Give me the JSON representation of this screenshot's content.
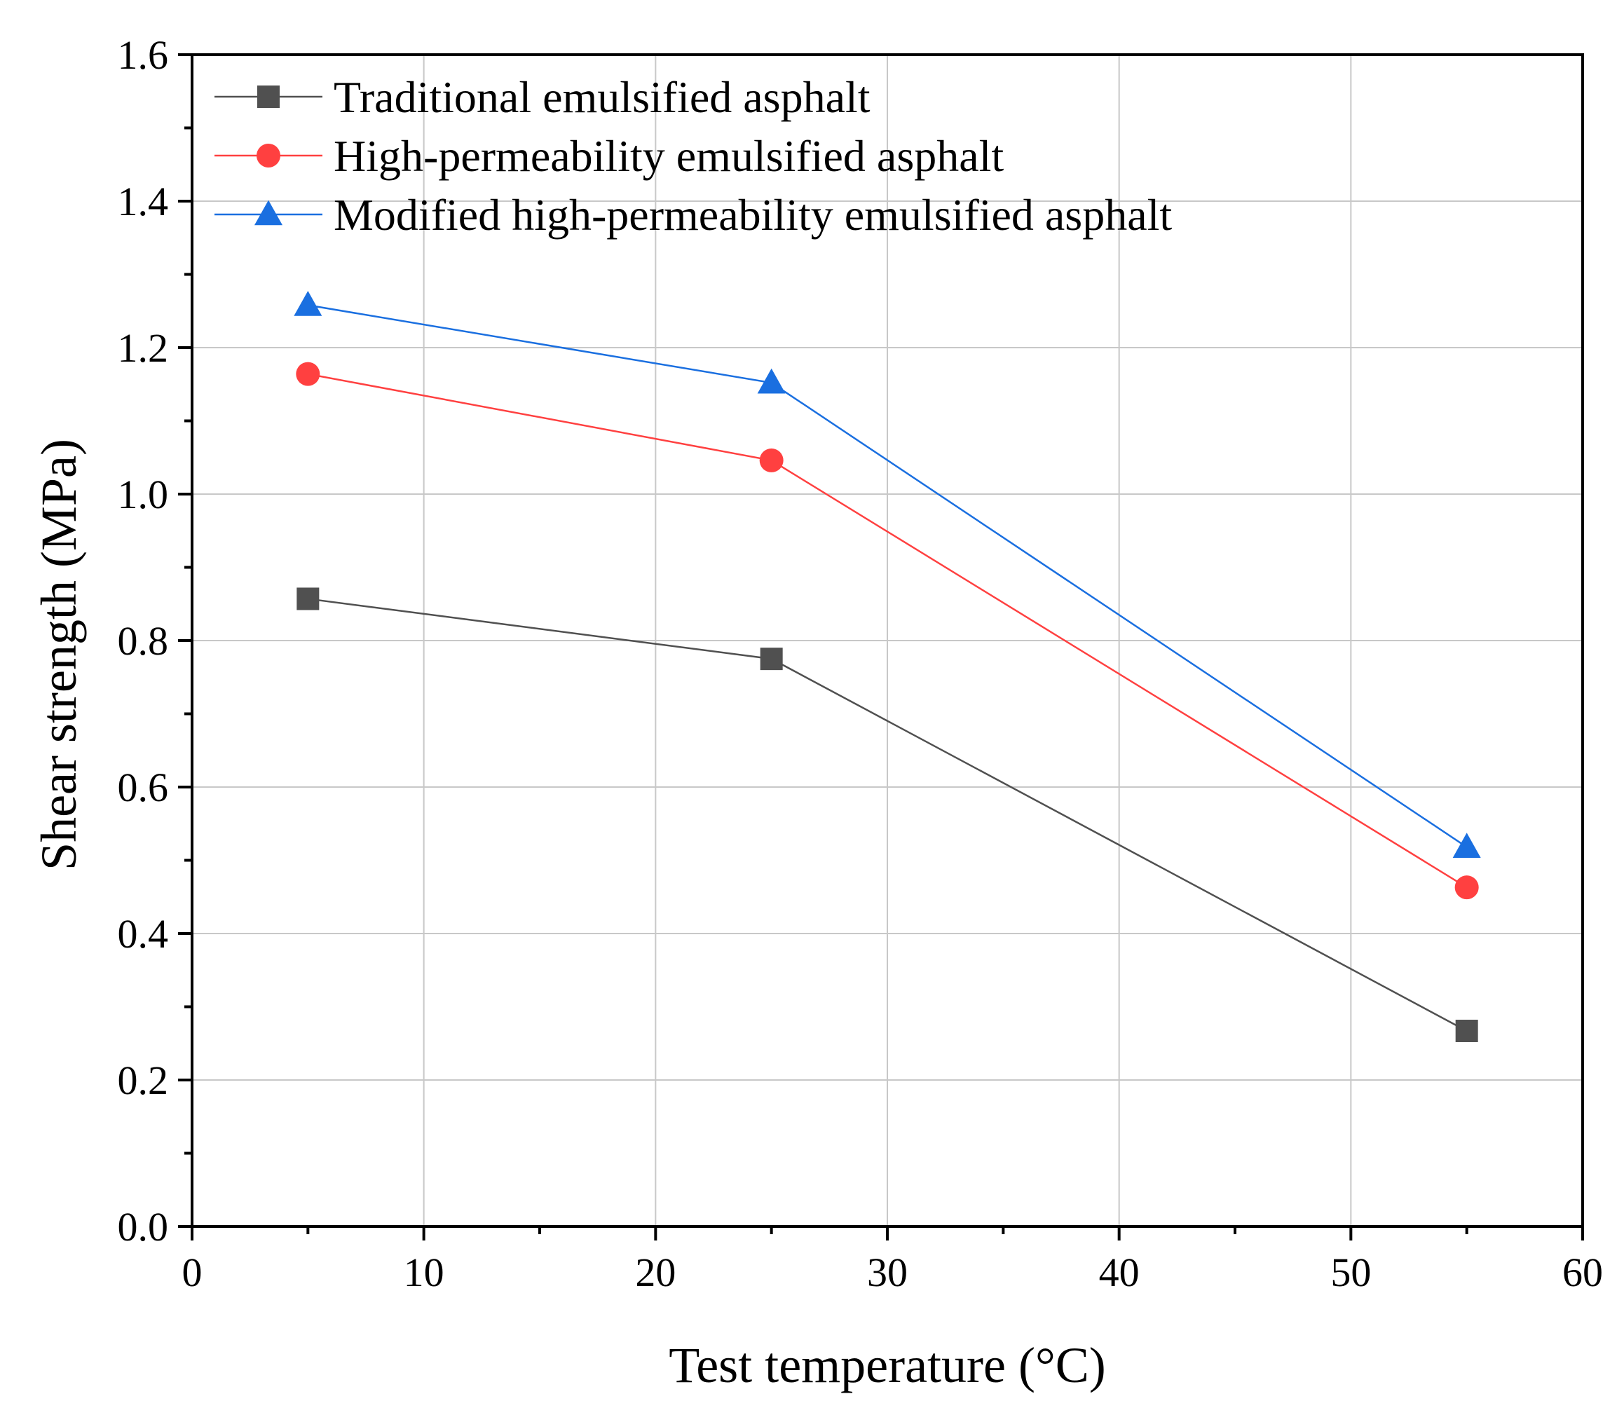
{
  "chart_data": {
    "type": "line",
    "title": "",
    "xlabel": "Test temperature (°C)",
    "ylabel": "Shear strength (MPa)",
    "xlim": [
      0,
      60
    ],
    "ylim": [
      0.0,
      1.6
    ],
    "xticks": [
      0,
      10,
      20,
      30,
      40,
      50,
      60
    ],
    "xtick_labels": [
      "0",
      "10",
      "20",
      "30",
      "40",
      "50",
      "60"
    ],
    "yticks": [
      0.0,
      0.2,
      0.4,
      0.6,
      0.8,
      1.0,
      1.2,
      1.4,
      1.6
    ],
    "ytick_labels": [
      "0.0",
      "0.2",
      "0.4",
      "0.6",
      "0.8",
      "1.0",
      "1.2",
      "1.4",
      "1.6"
    ],
    "grid": true,
    "legend_position": "top-left",
    "x": [
      5,
      25,
      55
    ],
    "series": [
      {
        "name": "Traditional emulsified asphalt",
        "color": "#505050",
        "marker": "square",
        "values": [
          0.857,
          0.775,
          0.267
        ]
      },
      {
        "name": "High-permeability emulsified asphalt",
        "color": "#ff4040",
        "marker": "circle",
        "values": [
          1.164,
          1.046,
          0.463
        ]
      },
      {
        "name": "Modified high-permeability emulsified asphalt",
        "color": "#1a6fe0",
        "marker": "triangle",
        "values": [
          1.258,
          1.152,
          0.518
        ]
      }
    ]
  }
}
